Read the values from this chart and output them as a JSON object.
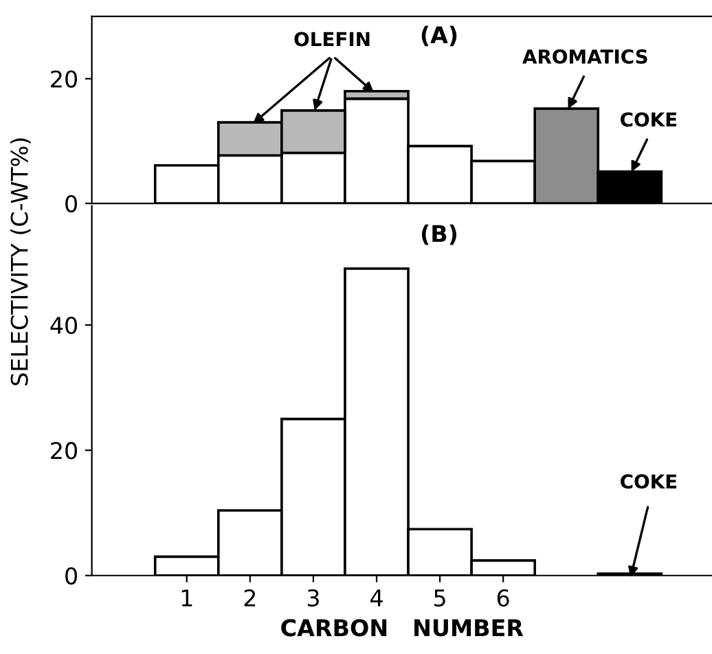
{
  "chart_data": [
    {
      "type": "bar",
      "stacked": true,
      "annotations": [
        "(A)"
      ],
      "ylabel": "SELECTIVITY (C-WT%)",
      "x": [
        1,
        2,
        3,
        4,
        5,
        6,
        7,
        8
      ],
      "xlim": [
        -0.5,
        9.3
      ],
      "ylim": [
        0,
        30
      ],
      "yticks": [
        0,
        20
      ],
      "tick_labels": "y",
      "grid": false,
      "series": [
        {
          "color": "#ffffff",
          "values": [
            6.1,
            7.7,
            8.1,
            16.8,
            9.2,
            6.8,
            null,
            null
          ]
        },
        {
          "name": "OLEFIN",
          "color": "#b8b8b8",
          "values": [
            null,
            5.3,
            6.8,
            1.2,
            null,
            null,
            null,
            null
          ]
        },
        {
          "name": "AROMATICS",
          "color": "#8c8c8c",
          "values": [
            null,
            null,
            null,
            null,
            null,
            null,
            15.2,
            null
          ]
        },
        {
          "name": "COKE",
          "color": "#000000",
          "values": [
            null,
            null,
            null,
            null,
            null,
            null,
            null,
            5.1
          ]
        }
      ]
    },
    {
      "type": "bar",
      "annotations": [
        "(B)"
      ],
      "xlabel": "CARBON   NUMBER",
      "x": [
        1,
        2,
        3,
        4,
        5,
        6,
        7,
        8
      ],
      "xlim": [
        -0.5,
        9.3
      ],
      "xticks": [
        1,
        2,
        3,
        4,
        5,
        6
      ],
      "ylim": [
        0,
        59
      ],
      "yticks": [
        0,
        20,
        40
      ],
      "grid": false,
      "series": [
        {
          "color": "#ffffff",
          "values": [
            3.0,
            10.4,
            25.0,
            49.0,
            7.4,
            2.4,
            null,
            null
          ]
        },
        {
          "name": "COKE",
          "color": "#000000",
          "values": [
            null,
            null,
            null,
            null,
            null,
            null,
            null,
            0.3
          ]
        }
      ]
    }
  ]
}
